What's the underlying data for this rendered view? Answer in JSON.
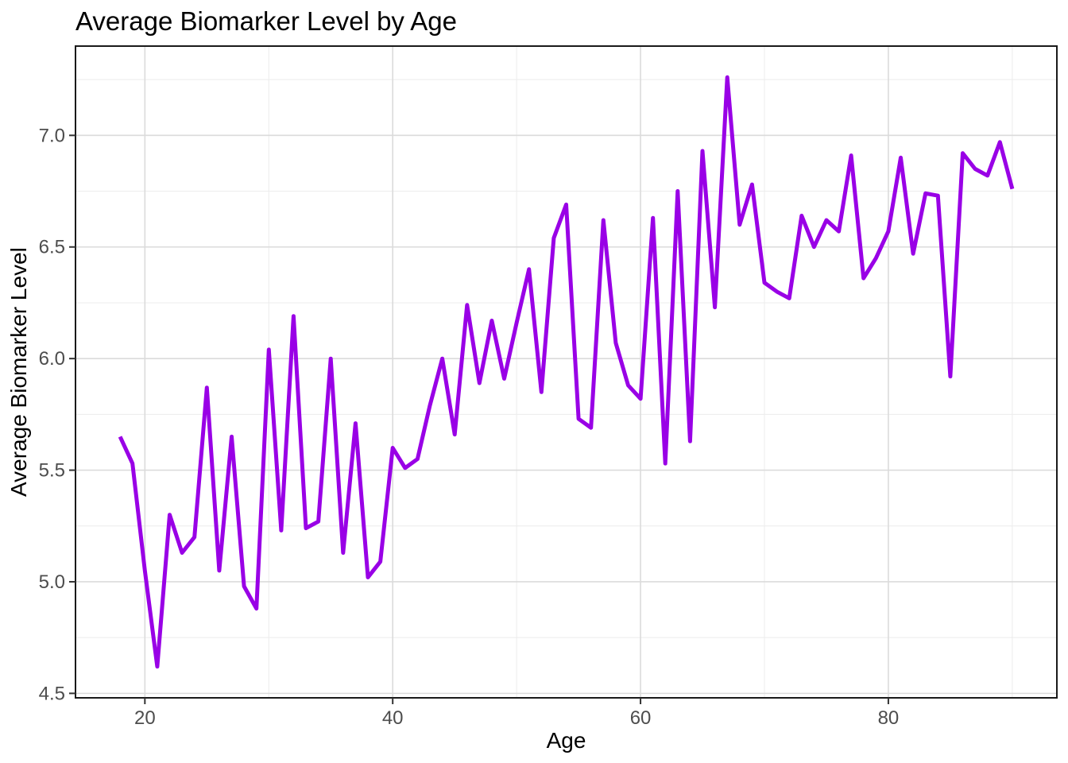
{
  "chart_data": {
    "type": "line",
    "title": "Average Biomarker Level by Age",
    "xlabel": "Age",
    "ylabel": "Average Biomarker Level",
    "grid": true,
    "legend": false,
    "xlim": [
      14.4,
      93.6
    ],
    "ylim": [
      4.48,
      7.4
    ],
    "x_ticks": {
      "major": [
        20,
        40,
        60,
        80
      ],
      "minor": [
        30,
        50,
        70,
        90
      ],
      "labels": [
        "20",
        "40",
        "60",
        "80"
      ]
    },
    "y_ticks": {
      "major": [
        4.5,
        5.0,
        5.5,
        6.0,
        6.5,
        7.0
      ],
      "minor": [
        4.75,
        5.25,
        5.75,
        6.25,
        6.75,
        7.25
      ],
      "labels": [
        "4.5",
        "5.0",
        "5.5",
        "6.0",
        "6.5",
        "7.0"
      ]
    },
    "series": [
      {
        "name": "Average Biomarker Level",
        "x": [
          18,
          19,
          20,
          21,
          22,
          23,
          24,
          25,
          26,
          27,
          28,
          29,
          30,
          31,
          32,
          33,
          34,
          35,
          36,
          37,
          38,
          39,
          40,
          41,
          42,
          43,
          44,
          45,
          46,
          47,
          48,
          49,
          50,
          51,
          52,
          53,
          54,
          55,
          56,
          57,
          58,
          59,
          60,
          61,
          62,
          63,
          64,
          65,
          66,
          67,
          68,
          69,
          70,
          71,
          72,
          73,
          74,
          75,
          76,
          77,
          78,
          79,
          80,
          81,
          82,
          83,
          84,
          85,
          86,
          87,
          88,
          89,
          90
        ],
        "y": [
          5.65,
          5.53,
          5.05,
          4.62,
          5.3,
          5.13,
          5.2,
          5.87,
          5.05,
          5.65,
          4.98,
          4.88,
          6.04,
          5.23,
          6.19,
          5.24,
          5.27,
          6.0,
          5.13,
          5.71,
          5.02,
          5.09,
          5.6,
          5.51,
          5.55,
          5.79,
          6.0,
          5.66,
          6.24,
          5.89,
          6.17,
          5.91,
          6.16,
          6.4,
          5.85,
          6.54,
          6.69,
          5.73,
          5.69,
          6.62,
          6.07,
          5.88,
          5.82,
          6.63,
          5.53,
          6.75,
          5.63,
          6.93,
          6.23,
          7.26,
          6.6,
          6.78,
          6.34,
          6.3,
          6.27,
          6.64,
          6.5,
          6.62,
          6.57,
          6.91,
          6.36,
          6.45,
          6.57,
          6.9,
          6.47,
          6.74,
          6.73,
          5.92,
          6.92,
          6.85,
          6.82,
          6.97,
          6.76
        ]
      }
    ]
  },
  "style": {
    "line_color": "#9900E6",
    "line_width": 5,
    "grid_major_color": "#DBDBDB",
    "grid_minor_color": "#ECECEC",
    "panel_border_color": "#1A1A1A",
    "panel_background": "#FFFFFF",
    "tick_mark_color": "#333333",
    "tick_label_color": "#4D4D4D",
    "title_color": "#000000",
    "background": "#FFFFFF"
  }
}
